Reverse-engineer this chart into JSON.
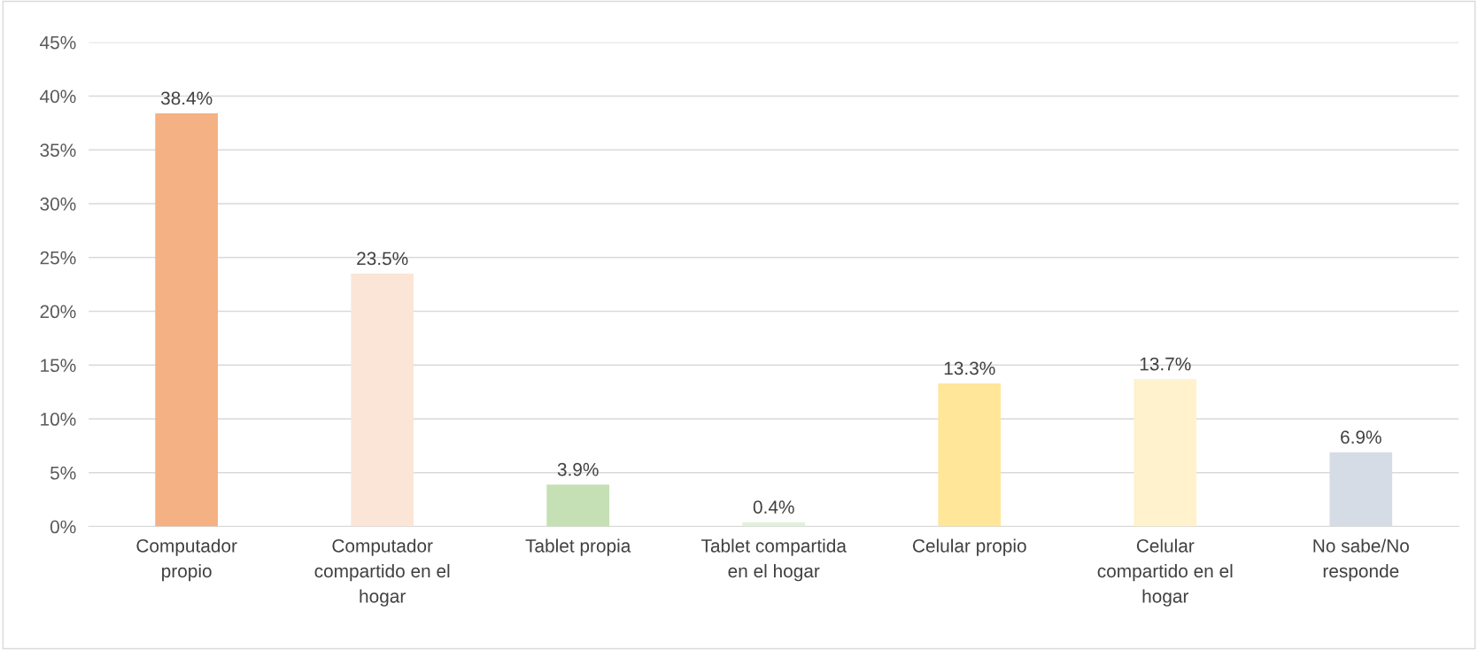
{
  "chart_data": {
    "type": "bar",
    "categories": [
      "Computador\npropio",
      "Computador\ncompartido en el\nhogar",
      "Tablet propia",
      "Tablet compartida\nen el hogar",
      "Celular propio",
      "Celular\ncompartido en el\nhogar",
      "No sabe/No\nresponde"
    ],
    "values": [
      38.4,
      23.5,
      3.9,
      0.4,
      13.3,
      13.7,
      6.9
    ],
    "colors": [
      "#f4b183",
      "#fbe5d6",
      "#c5e0b4",
      "#e2f0d9",
      "#ffe699",
      "#fff2cc",
      "#d6dce5"
    ],
    "value_labels": [
      "38.4%",
      "23.5%",
      "3.9%",
      "0.4%",
      "13.3%",
      "13.7%",
      "6.9%"
    ],
    "ylim": [
      0,
      45
    ],
    "yticks": [
      {
        "value": 0,
        "label": "0%"
      },
      {
        "value": 5,
        "label": "5%"
      },
      {
        "value": 10,
        "label": "10%"
      },
      {
        "value": 15,
        "label": "15%"
      },
      {
        "value": 20,
        "label": "20%"
      },
      {
        "value": 25,
        "label": "25%"
      },
      {
        "value": 30,
        "label": "30%"
      },
      {
        "value": 35,
        "label": "35%"
      },
      {
        "value": 40,
        "label": "40%"
      },
      {
        "value": 45,
        "label": "45%"
      }
    ],
    "grid": "y"
  }
}
